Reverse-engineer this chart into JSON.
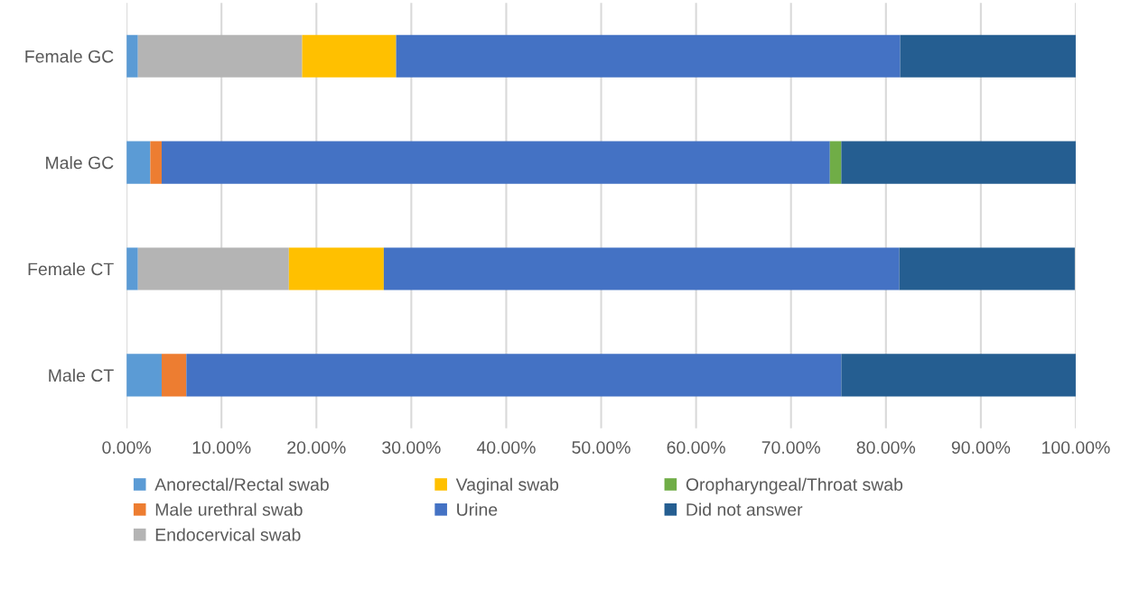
{
  "chart_data": {
    "type": "bar",
    "orientation": "horizontal",
    "stacked": true,
    "categories": [
      "Female GC",
      "Male GC",
      "Female CT",
      "Male CT"
    ],
    "series": [
      {
        "name": "Anorectal/Rectal swab",
        "color": "#5b9bd5",
        "values": [
          1.2,
          2.5,
          1.2,
          3.7
        ]
      },
      {
        "name": "Male urethral swab",
        "color": "#ed7d31",
        "values": [
          null,
          1.2,
          null,
          2.6
        ]
      },
      {
        "name": "Endocervical swab",
        "color": "#b4b4b4",
        "values": [
          17.3,
          null,
          15.9,
          null
        ]
      },
      {
        "name": "Vaginal swab",
        "color": "#ffc000",
        "values": [
          9.9,
          null,
          10.0,
          null
        ]
      },
      {
        "name": "Urine",
        "color": "#4472c4",
        "values": [
          53.1,
          70.4,
          54.3,
          69.0
        ]
      },
      {
        "name": "Oropharyngeal/Throat swab",
        "color": "#70ad47",
        "values": [
          null,
          1.2,
          null,
          null
        ]
      },
      {
        "name": "Did not answer",
        "color": "#255e91",
        "values": [
          18.5,
          24.7,
          18.5,
          24.7
        ]
      }
    ],
    "xlim": [
      0,
      100
    ],
    "xticks": [
      {
        "value": 0,
        "label": "0.00%"
      },
      {
        "value": 10,
        "label": "10.00%"
      },
      {
        "value": 20,
        "label": "20.00%"
      },
      {
        "value": 30,
        "label": "30.00%"
      },
      {
        "value": 40,
        "label": "40.00%"
      },
      {
        "value": 50,
        "label": "50.00%"
      },
      {
        "value": 60,
        "label": "60.00%"
      },
      {
        "value": 70,
        "label": "70.00%"
      },
      {
        "value": 80,
        "label": "80.00%"
      },
      {
        "value": 90,
        "label": "90.00%"
      },
      {
        "value": 100,
        "label": "100.00%"
      }
    ],
    "grid": "x",
    "legend": "bottom"
  }
}
